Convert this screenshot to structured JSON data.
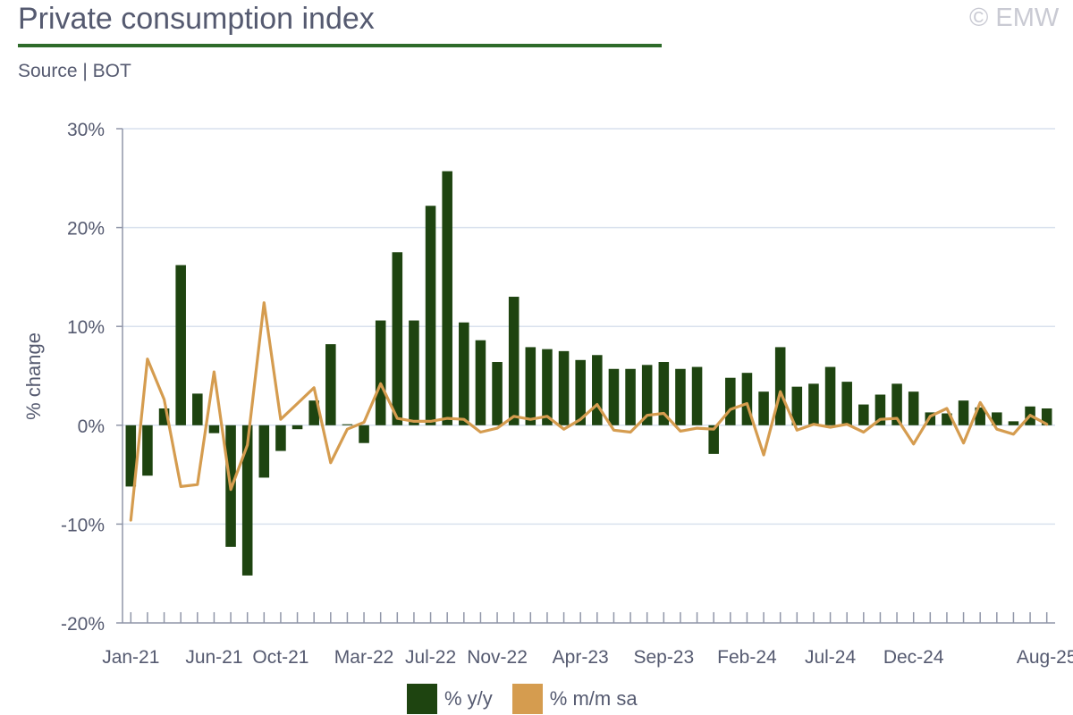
{
  "header": {
    "title": "Private consumption index",
    "source": "Source | BOT",
    "copyright": "© EMW"
  },
  "colors": {
    "yoy": "#1e4410",
    "mom": "#d59c4f",
    "axis": "#9096a8",
    "grid": "#d9e1ee"
  },
  "chart_data": {
    "type": "bar+line",
    "title": "Private consumption index",
    "xlabel": "",
    "ylabel": "% change",
    "ylim": [
      -20,
      30
    ],
    "yticks": [
      -20,
      -10,
      0,
      10,
      20,
      30
    ],
    "ytick_labels": [
      "-20%",
      "-10%",
      "0%",
      "10%",
      "20%",
      "30%"
    ],
    "categories": [
      "Jan-21",
      "Feb-21",
      "Mar-21",
      "Apr-21",
      "May-21",
      "Jun-21",
      "Jul-21",
      "Aug-21",
      "Sep-21",
      "Oct-21",
      "Nov-21",
      "Dec-21",
      "Jan-22",
      "Feb-22",
      "Mar-22",
      "Apr-22",
      "May-22",
      "Jun-22",
      "Jul-22",
      "Aug-22",
      "Sep-22",
      "Oct-22",
      "Nov-22",
      "Dec-22",
      "Jan-23",
      "Feb-23",
      "Mar-23",
      "Apr-23",
      "May-23",
      "Jun-23",
      "Jul-23",
      "Aug-23",
      "Sep-23",
      "Oct-23",
      "Nov-23",
      "Dec-23",
      "Jan-24",
      "Feb-24",
      "Mar-24",
      "Apr-24",
      "May-24",
      "Jun-24",
      "Jul-24",
      "Aug-24",
      "Sep-24",
      "Oct-24",
      "Nov-24",
      "Dec-24",
      "Jan-25",
      "Feb-25",
      "Mar-25",
      "Apr-25",
      "May-25",
      "Jun-25",
      "Jul-25",
      "Aug-25"
    ],
    "xtick_labels": [
      {
        "index": 0,
        "label": "Jan-21"
      },
      {
        "index": 5,
        "label": "Jun-21"
      },
      {
        "index": 9,
        "label": "Oct-21"
      },
      {
        "index": 14,
        "label": "Mar-22"
      },
      {
        "index": 18,
        "label": "Jul-22"
      },
      {
        "index": 22,
        "label": "Nov-22"
      },
      {
        "index": 27,
        "label": "Apr-23"
      },
      {
        "index": 32,
        "label": "Sep-23"
      },
      {
        "index": 37,
        "label": "Feb-24"
      },
      {
        "index": 42,
        "label": "Jul-24"
      },
      {
        "index": 47,
        "label": "Dec-24"
      },
      {
        "index": 55,
        "label": "Aug-25"
      }
    ],
    "series": [
      {
        "name": "% y/y",
        "kind": "bar",
        "values": [
          -6.2,
          -5.1,
          1.7,
          16.2,
          3.2,
          -0.8,
          -12.3,
          -15.2,
          -5.3,
          -2.6,
          -0.4,
          2.5,
          8.2,
          0.1,
          -1.8,
          10.6,
          17.5,
          10.6,
          22.2,
          25.7,
          10.4,
          8.6,
          6.4,
          13.0,
          7.9,
          7.7,
          7.5,
          6.6,
          7.1,
          5.7,
          5.7,
          6.1,
          6.4,
          5.7,
          5.9,
          -2.9,
          4.8,
          5.3,
          3.4,
          7.9,
          3.9,
          4.2,
          5.9,
          4.4,
          2.1,
          3.1,
          4.2,
          3.4,
          1.3,
          1.2,
          2.5,
          1.8,
          1.3,
          0.4,
          1.9,
          1.7
        ]
      },
      {
        "name": "% m/m sa",
        "kind": "line",
        "values": [
          -9.6,
          6.7,
          2.6,
          -6.2,
          -6.0,
          5.4,
          -6.5,
          -2.0,
          12.4,
          0.6,
          2.2,
          3.8,
          -3.8,
          -0.4,
          0.3,
          4.2,
          0.7,
          0.4,
          0.4,
          0.7,
          0.6,
          -0.7,
          -0.3,
          0.9,
          0.6,
          0.9,
          -0.4,
          0.6,
          2.1,
          -0.5,
          -0.7,
          1.0,
          1.2,
          -0.6,
          -0.3,
          -0.4,
          1.6,
          2.2,
          -3.0,
          3.4,
          -0.5,
          0.1,
          -0.2,
          0.1,
          -0.7,
          0.6,
          0.7,
          -1.9,
          0.9,
          1.7,
          -1.8,
          2.3,
          -0.4,
          -0.9,
          1.0,
          0.1
        ]
      }
    ],
    "legend": {
      "position": "bottom",
      "entries": [
        "% y/y",
        "% m/m sa"
      ]
    }
  }
}
